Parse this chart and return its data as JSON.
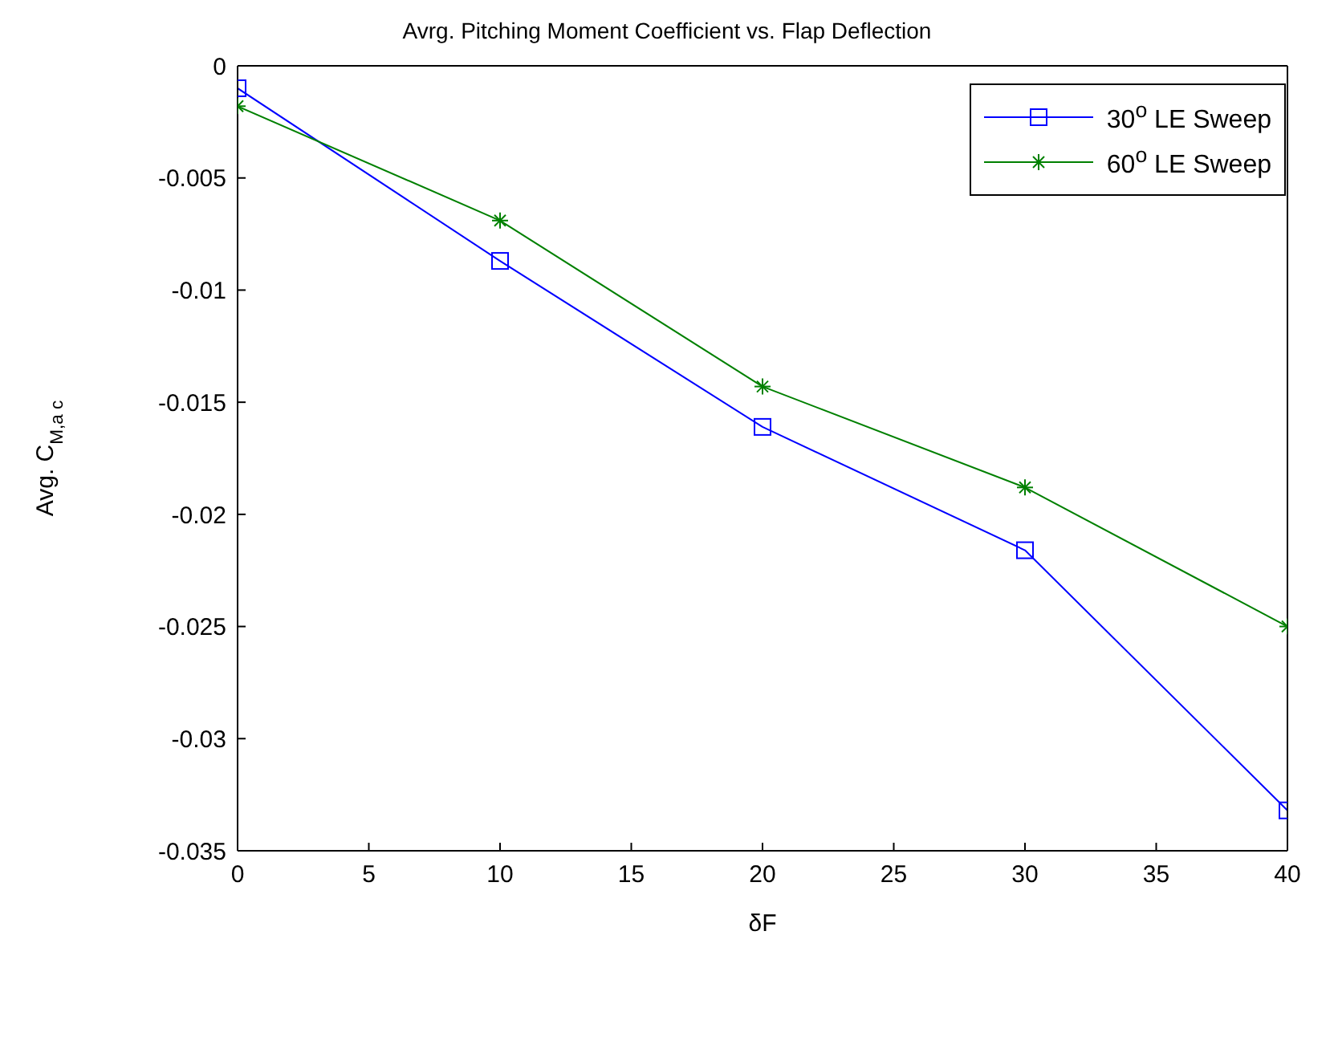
{
  "chart_data": {
    "type": "line",
    "title": "Avrg. Pitching Moment Coefficient vs. Flap Deflection",
    "xlabel": "δF",
    "ylabel": "Avg. C$_{M,a c}$",
    "x": [
      0,
      10,
      20,
      30,
      40
    ],
    "series": [
      {
        "name": "30$^{o}$ LE Sweep",
        "color": "#0000ff",
        "marker": "square",
        "values": [
          -0.001,
          -0.0087,
          -0.0161,
          -0.0216,
          -0.0332
        ]
      },
      {
        "name": "60$^{o}$ LE Sweep",
        "color": "#008000",
        "marker": "cross",
        "values": [
          -0.0018,
          -0.0069,
          -0.0143,
          -0.0188,
          -0.025
        ]
      }
    ],
    "xlim": [
      0,
      40
    ],
    "xticks": [
      0,
      5,
      10,
      15,
      20,
      25,
      30,
      35,
      40
    ],
    "ylim": [
      -0.035,
      0
    ],
    "yticks": [
      -0.035,
      -0.03,
      -0.025,
      -0.02,
      -0.015,
      -0.01,
      -0.005,
      0
    ],
    "grid": false,
    "legend": "top right",
    "line_style": "solid"
  }
}
